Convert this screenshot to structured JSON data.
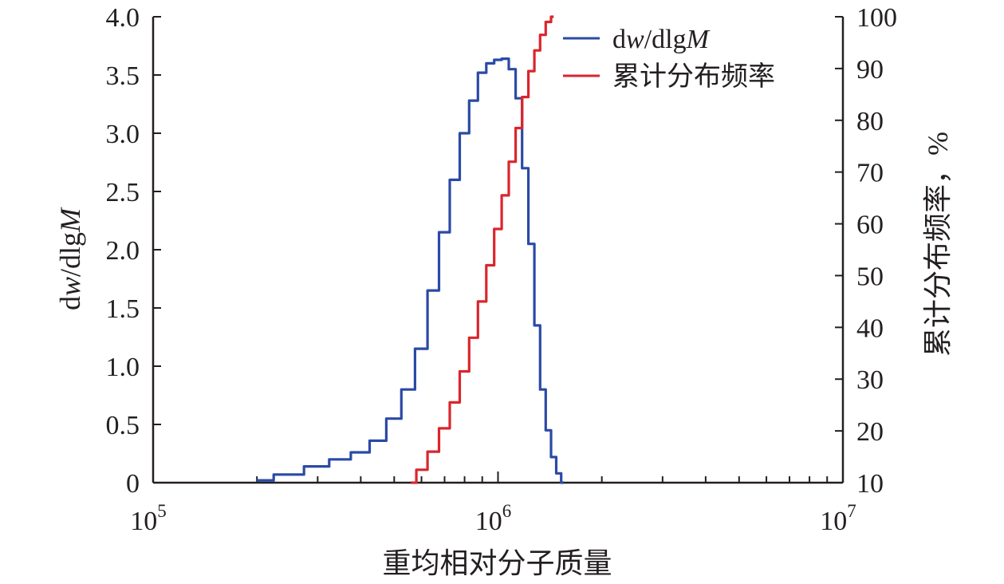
{
  "chart_data": {
    "type": "line",
    "xlabel": "重均相对分子质量",
    "ylabel_left": "dw/dlgM",
    "ylabel_right": "累计分布频率，%",
    "x_scale": "log",
    "xlim": [
      100000,
      10000000
    ],
    "x_ticks": [
      {
        "base": "10",
        "exp": "5",
        "value": 100000
      },
      {
        "base": "10",
        "exp": "6",
        "value": 1000000
      },
      {
        "base": "10",
        "exp": "7",
        "value": 10000000
      }
    ],
    "ylim_left": [
      0,
      4.0
    ],
    "yticks_left": [
      "0",
      "0.5",
      "1.0",
      "1.5",
      "2.0",
      "2.5",
      "3.0",
      "3.5",
      "4.0"
    ],
    "ylim_right": [
      10,
      100
    ],
    "yticks_right": [
      "10",
      "20",
      "30",
      "40",
      "50",
      "60",
      "70",
      "80",
      "90",
      "100"
    ],
    "grid": false,
    "legend_position": "top-right",
    "series": [
      {
        "name": "dw/dlgM",
        "axis": "left",
        "color": "#2b4aa6",
        "x": [
          200000,
          250000,
          300000,
          350000,
          400000,
          450000,
          500000,
          550000,
          600000,
          650000,
          700000,
          750000,
          800000,
          850000,
          900000,
          950000,
          1000000,
          1050000,
          1100000,
          1150000,
          1200000,
          1250000,
          1300000,
          1350000,
          1400000,
          1450000,
          1500000,
          1550000
        ],
        "y": [
          0.02,
          0.07,
          0.14,
          0.2,
          0.26,
          0.36,
          0.55,
          0.8,
          1.15,
          1.65,
          2.15,
          2.6,
          3.0,
          3.28,
          3.52,
          3.6,
          3.63,
          3.64,
          3.55,
          3.3,
          2.7,
          2.05,
          1.35,
          0.8,
          0.45,
          0.22,
          0.08,
          0.0
        ]
      },
      {
        "name": "累计分布频率",
        "axis": "right",
        "color": "#d9262c",
        "x": [
          560000,
          600000,
          650000,
          700000,
          750000,
          800000,
          850000,
          900000,
          950000,
          1000000,
          1050000,
          1100000,
          1150000,
          1200000,
          1250000,
          1300000,
          1350000,
          1400000,
          1450000
        ],
        "y": [
          10,
          12.5,
          16,
          20.5,
          25.5,
          31.5,
          38,
          45,
          52,
          59,
          65.5,
          72,
          78.5,
          84.5,
          89.5,
          93.5,
          96.5,
          99,
          100
        ]
      }
    ],
    "legend": {
      "items": [
        {
          "label": "dw/dlgM",
          "color": "#2b4aa6"
        },
        {
          "label": "累计分布频率",
          "color": "#d9262c"
        }
      ]
    }
  }
}
